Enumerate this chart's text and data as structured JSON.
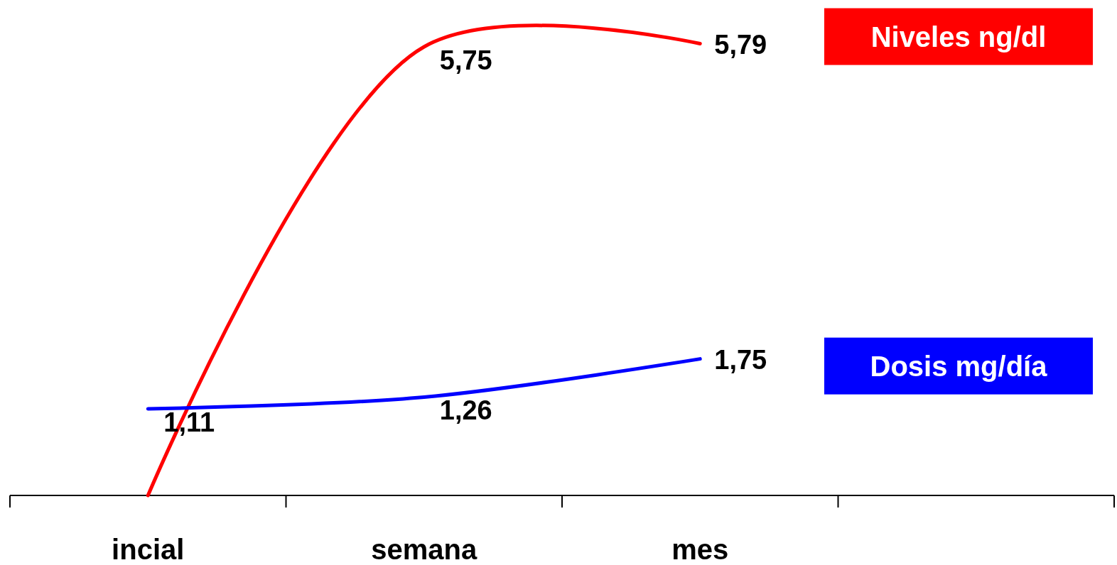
{
  "chart_data": {
    "type": "line",
    "categories": [
      "incial",
      "semana",
      "mes",
      null
    ],
    "series": [
      {
        "name": "Niveles ng/dl",
        "color": "#ff0000",
        "values": [
          0,
          5.75,
          5.79,
          null
        ],
        "value_labels": [
          null,
          "5,75",
          "5,79",
          null
        ]
      },
      {
        "name": "Dosis mg/día",
        "color": "#0000ff",
        "values": [
          1.11,
          1.26,
          1.75,
          null
        ],
        "value_labels": [
          "1,11",
          "1,26",
          "1,75",
          null
        ]
      }
    ],
    "ylim": [
      0,
      6.35
    ],
    "tick_labels": "x",
    "legend": "right",
    "marker": "none",
    "line_style": "solid"
  }
}
